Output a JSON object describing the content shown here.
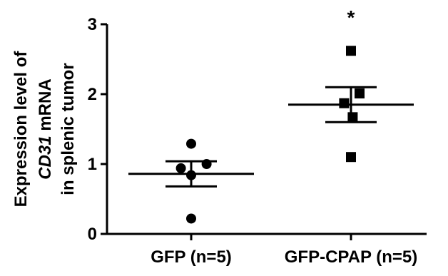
{
  "chart_data": {
    "type": "scatter",
    "ylabel_lines": [
      [
        {
          "text": "Expression level of",
          "italic": false
        }
      ],
      [
        {
          "text": "CD31",
          "italic": true
        },
        {
          "text": " mRNA",
          "italic": false
        }
      ],
      [
        {
          "text": "in splenic tumor",
          "italic": false
        }
      ]
    ],
    "ylim": [
      0,
      3
    ],
    "yticks": [
      0,
      1,
      2,
      3
    ],
    "grid": false,
    "categories": [
      "GFP (n=5)",
      "GFP-CPAP (n=5)"
    ],
    "series": [
      {
        "category": "GFP (n=5)",
        "marker": "circle",
        "points": [
          {
            "offset": 0.0,
            "y": 1.29
          },
          {
            "offset": -0.12,
            "y": 0.94
          },
          {
            "offset": 0.0,
            "y": 0.84
          },
          {
            "offset": 0.18,
            "y": 1.0
          },
          {
            "offset": 0.0,
            "y": 0.22
          }
        ],
        "mean": 0.86,
        "sem_low": 0.68,
        "sem_high": 1.04
      },
      {
        "category": "GFP-CPAP (n=5)",
        "marker": "square",
        "points": [
          {
            "offset": 0.0,
            "y": 2.62
          },
          {
            "offset": 0.1,
            "y": 2.01
          },
          {
            "offset": -0.08,
            "y": 1.87
          },
          {
            "offset": 0.02,
            "y": 1.67
          },
          {
            "offset": 0.0,
            "y": 1.1
          }
        ],
        "mean": 1.85,
        "sem_low": 1.6,
        "sem_high": 2.1
      }
    ],
    "annotations": [
      {
        "category": "GFP-CPAP (n=5)",
        "text": "*"
      }
    ],
    "color": "#000000"
  }
}
